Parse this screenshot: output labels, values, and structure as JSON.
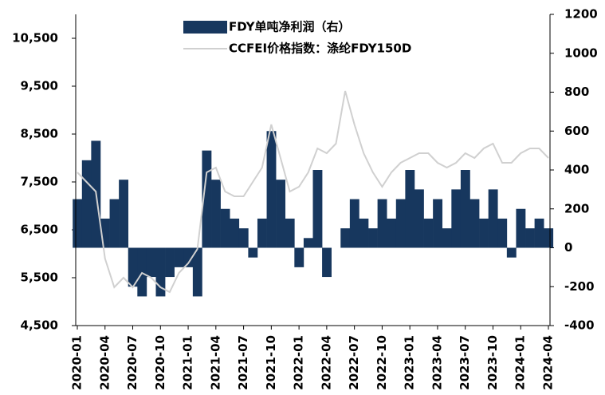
{
  "chart_data": {
    "type": "bar",
    "categories": [
      "2020-01",
      null,
      null,
      "2020-04",
      null,
      null,
      "2020-07",
      null,
      null,
      "2020-10",
      null,
      null,
      "2021-01",
      null,
      null,
      "2021-04",
      null,
      null,
      "2021-07",
      null,
      null,
      "2021-10",
      null,
      null,
      "2022-01",
      null,
      null,
      "2022-04",
      null,
      null,
      "2022-07",
      null,
      null,
      "2022-10",
      null,
      null,
      "2023-01",
      null,
      null,
      "2023-04",
      null,
      null,
      "2023-07",
      null,
      null,
      "2023-10",
      null,
      null,
      "2024-01",
      null,
      null,
      "2024-04"
    ],
    "series": [
      {
        "name": "FDY单吨净利润（右）",
        "type": "bar",
        "axis": "y2",
        "color": "#17375e",
        "values": [
          250,
          450,
          550,
          150,
          250,
          350,
          -200,
          -250,
          -150,
          -250,
          -150,
          -100,
          -100,
          -250,
          500,
          350,
          200,
          150,
          100,
          -50,
          150,
          600,
          350,
          150,
          -100,
          50,
          400,
          -150,
          0,
          100,
          250,
          150,
          100,
          250,
          150,
          250,
          400,
          300,
          150,
          250,
          100,
          300,
          400,
          250,
          150,
          300,
          150,
          -50,
          200,
          100,
          150,
          100
        ]
      },
      {
        "name": "CCFEI价格指数：涤纶FDY150D",
        "type": "line",
        "axis": "y",
        "color": "#d0d0d0",
        "values": [
          7700,
          7500,
          7300,
          5900,
          5300,
          5500,
          5300,
          5600,
          5500,
          5300,
          5200,
          5600,
          5800,
          6100,
          7700,
          7800,
          7300,
          7200,
          7200,
          7500,
          7800,
          8700,
          8000,
          7300,
          7400,
          7700,
          8200,
          8100,
          8300,
          9400,
          8700,
          8100,
          7700,
          7400,
          7700,
          7900,
          8000,
          8100,
          8100,
          7900,
          7800,
          7900,
          8100,
          8000,
          8200,
          8300,
          7900,
          7900,
          8100,
          8200,
          8200,
          8000
        ]
      }
    ],
    "ylim": [
      4500,
      11000
    ],
    "yticks": [
      {
        "value": 4500,
        "label": "4,500"
      },
      {
        "value": 5500,
        "label": "5,500"
      },
      {
        "value": 6500,
        "label": "6,500"
      },
      {
        "value": 7500,
        "label": "7,500"
      },
      {
        "value": 8500,
        "label": "8,500"
      },
      {
        "value": 9500,
        "label": "9,500"
      },
      {
        "value": 10500,
        "label": "10,500"
      }
    ],
    "y2lim": [
      -400,
      1200
    ],
    "y2ticks": [
      -400,
      -200,
      0,
      200,
      400,
      600,
      800,
      1000,
      1200
    ]
  }
}
